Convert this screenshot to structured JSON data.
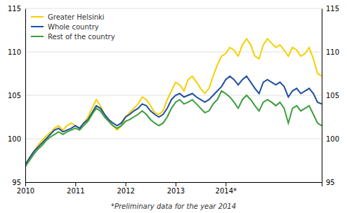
{
  "chart_data": {
    "type": "line",
    "footnote": "*Preliminary data for the year 2014",
    "categories": [
      "2010",
      null,
      null,
      null,
      null,
      null,
      null,
      null,
      null,
      null,
      null,
      null,
      "2011",
      null,
      null,
      null,
      null,
      null,
      null,
      null,
      null,
      null,
      null,
      null,
      "2012",
      null,
      null,
      null,
      null,
      null,
      null,
      null,
      null,
      null,
      null,
      null,
      "2013",
      null,
      null,
      null,
      null,
      null,
      null,
      null,
      null,
      null,
      null,
      null,
      "2014*",
      null,
      null,
      null,
      null,
      null,
      null,
      null,
      null,
      null,
      null,
      null,
      null,
      null,
      null,
      null,
      null,
      null,
      null,
      null,
      null,
      null,
      null,
      null
    ],
    "series": [
      {
        "name": "Greater Helsinki",
        "color": "#f5d000",
        "values": [
          96.8,
          97.5,
          98.5,
          99.2,
          99.8,
          100.3,
          100.7,
          101.2,
          101.5,
          101.0,
          101.5,
          101.8,
          101.5,
          101.2,
          101.8,
          102.5,
          103.5,
          104.5,
          103.8,
          102.8,
          102.0,
          101.5,
          101.0,
          101.5,
          102.5,
          103.0,
          103.5,
          104.0,
          104.8,
          104.5,
          103.8,
          103.0,
          102.8,
          103.2,
          104.5,
          105.5,
          106.5,
          106.2,
          105.5,
          106.8,
          107.2,
          106.5,
          105.8,
          105.2,
          105.8,
          107.2,
          108.5,
          109.5,
          109.8,
          110.5,
          110.2,
          109.5,
          110.8,
          111.5,
          110.8,
          109.5,
          109.2,
          110.8,
          111.5,
          111.0,
          110.5,
          110.8,
          110.2,
          109.5,
          110.5,
          110.2,
          109.5,
          109.8,
          110.5,
          109.2,
          107.5,
          107.2
        ]
      },
      {
        "name": "Whole country",
        "color": "#1f4e9e",
        "values": [
          97.0,
          97.8,
          98.5,
          99.0,
          99.5,
          100.0,
          100.5,
          101.0,
          101.2,
          100.8,
          101.0,
          101.2,
          101.5,
          101.2,
          101.8,
          102.2,
          103.0,
          103.8,
          103.5,
          102.8,
          102.2,
          101.8,
          101.5,
          101.8,
          102.5,
          102.8,
          103.2,
          103.5,
          104.0,
          103.8,
          103.2,
          102.8,
          102.5,
          102.8,
          103.5,
          104.5,
          105.0,
          105.2,
          104.8,
          105.0,
          105.2,
          104.8,
          104.5,
          104.2,
          104.5,
          105.0,
          105.5,
          106.0,
          106.8,
          107.2,
          106.8,
          106.2,
          106.8,
          107.2,
          106.5,
          105.8,
          105.2,
          106.5,
          106.8,
          106.5,
          106.2,
          106.5,
          106.0,
          104.8,
          105.5,
          105.8,
          105.2,
          105.5,
          105.8,
          105.2,
          104.2,
          104.0
        ]
      },
      {
        "name": "Rest of the country",
        "color": "#3a9e3a",
        "values": [
          96.8,
          97.5,
          98.2,
          98.8,
          99.2,
          99.8,
          100.2,
          100.5,
          100.8,
          100.5,
          100.8,
          101.0,
          101.2,
          101.0,
          101.5,
          102.0,
          102.8,
          103.5,
          103.2,
          102.5,
          102.0,
          101.5,
          101.2,
          101.5,
          102.0,
          102.2,
          102.5,
          102.8,
          103.2,
          102.8,
          102.2,
          101.8,
          101.5,
          101.8,
          102.5,
          103.5,
          104.2,
          104.5,
          104.0,
          104.2,
          104.5,
          104.0,
          103.5,
          103.0,
          103.2,
          104.0,
          104.5,
          105.5,
          105.2,
          104.8,
          104.2,
          103.5,
          104.5,
          105.0,
          104.5,
          103.8,
          103.2,
          104.2,
          104.5,
          104.2,
          103.8,
          104.2,
          103.5,
          101.8,
          103.5,
          103.8,
          103.2,
          103.5,
          103.8,
          102.8,
          101.8,
          101.5
        ]
      }
    ],
    "ylim": [
      95,
      115
    ],
    "yticks": [
      95,
      100,
      105,
      110,
      115
    ],
    "y2lim": [
      95,
      115
    ],
    "y2ticks": [
      95,
      100,
      105,
      110,
      115
    ],
    "grid": true,
    "legend": "upper left"
  }
}
